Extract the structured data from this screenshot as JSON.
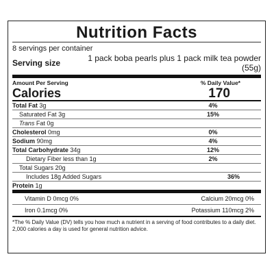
{
  "title": "Nutrition Facts",
  "servings_per_container": "8 servings per container",
  "serving_size_label": "Serving size",
  "serving_size_value": "1 pack boba pearls plus 1 pack milk tea powder  (55g)",
  "amount_per_serving": "Amount Per Serving",
  "daily_value_header": "% Daily Value*",
  "calories_label": "Calories",
  "calories_value": "170",
  "nutrients": [
    {
      "name": "Total Fat",
      "amount": "3g",
      "dv": "4%"
    },
    {
      "name": "Saturated Fat",
      "amount": "3g",
      "dv": "15%"
    },
    {
      "name": "Trans",
      "amount": "Fat 0g",
      "dv": ""
    },
    {
      "name": "Cholesterol",
      "amount": "0mg",
      "dv": "0%"
    },
    {
      "name": "Sodium",
      "amount": "90mg",
      "dv": "4%"
    },
    {
      "name": "Total Carbohydrate",
      "amount": "34g",
      "dv": "12%"
    },
    {
      "name": "Dietary Fiber",
      "amount": "less than 1g",
      "dv": "2%"
    },
    {
      "name": "Total Sugars",
      "amount": "20g",
      "dv": ""
    },
    {
      "name": "Includes 18g Added Sugars",
      "amount": "",
      "dv": "36%"
    },
    {
      "name": "Protein",
      "amount": "1g",
      "dv": ""
    }
  ],
  "vitamins": [
    {
      "left": "Vitamin D 0mcg 0%",
      "right": "Calcium 20mcg 0%"
    },
    {
      "left": "Iron 0.1mcg 0%",
      "right": "Potassium 110mcg 2%"
    }
  ],
  "footnote": "*The % Daily Value (DV) tells you how much a nutrient in a serving of food contributes to a daily diet. 2,000 calories a day is used for general nutrition advice."
}
